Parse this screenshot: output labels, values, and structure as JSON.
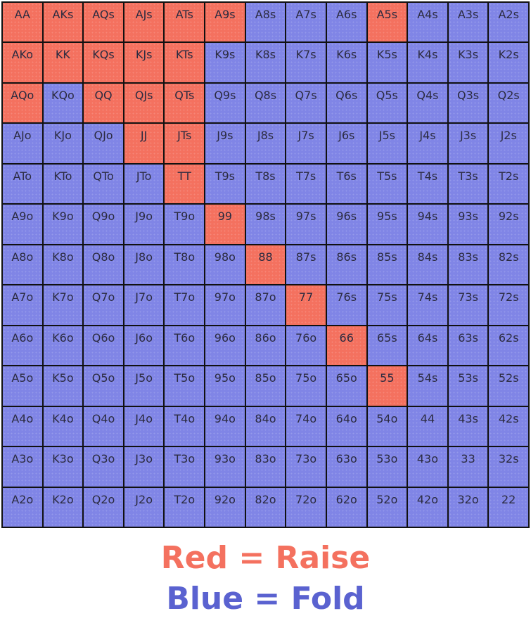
{
  "colors": {
    "raise": "#f4715f",
    "fold": "#8085e6",
    "raise_text": "#f4715f",
    "fold_text": "#5a62d0"
  },
  "grid": {
    "rows": [
      [
        "AA",
        "AKs",
        "AQs",
        "AJs",
        "ATs",
        "A9s",
        "A8s",
        "A7s",
        "A6s",
        "A5s",
        "A4s",
        "A3s",
        "A2s"
      ],
      [
        "AKo",
        "KK",
        "KQs",
        "KJs",
        "KTs",
        "K9s",
        "K8s",
        "K7s",
        "K6s",
        "K5s",
        "K4s",
        "K3s",
        "K2s"
      ],
      [
        "AQo",
        "KQo",
        "QQ",
        "QJs",
        "QTs",
        "Q9s",
        "Q8s",
        "Q7s",
        "Q6s",
        "Q5s",
        "Q4s",
        "Q3s",
        "Q2s"
      ],
      [
        "AJo",
        "KJo",
        "QJo",
        "JJ",
        "JTs",
        "J9s",
        "J8s",
        "J7s",
        "J6s",
        "J5s",
        "J4s",
        "J3s",
        "J2s"
      ],
      [
        "ATo",
        "KTo",
        "QTo",
        "JTo",
        "TT",
        "T9s",
        "T8s",
        "T7s",
        "T6s",
        "T5s",
        "T4s",
        "T3s",
        "T2s"
      ],
      [
        "A9o",
        "K9o",
        "Q9o",
        "J9o",
        "T9o",
        "99",
        "98s",
        "97s",
        "96s",
        "95s",
        "94s",
        "93s",
        "92s"
      ],
      [
        "A8o",
        "K8o",
        "Q8o",
        "J8o",
        "T8o",
        "98o",
        "88",
        "87s",
        "86s",
        "85s",
        "84s",
        "83s",
        "82s"
      ],
      [
        "A7o",
        "K7o",
        "Q7o",
        "J7o",
        "T7o",
        "97o",
        "87o",
        "77",
        "76s",
        "75s",
        "74s",
        "73s",
        "72s"
      ],
      [
        "A6o",
        "K6o",
        "Q6o",
        "J6o",
        "T6o",
        "96o",
        "86o",
        "76o",
        "66",
        "65s",
        "64s",
        "63s",
        "62s"
      ],
      [
        "A5o",
        "K5o",
        "Q5o",
        "J5o",
        "T5o",
        "95o",
        "85o",
        "75o",
        "65o",
        "55",
        "54s",
        "53s",
        "52s"
      ],
      [
        "A4o",
        "K4o",
        "Q4o",
        "J4o",
        "T4o",
        "94o",
        "84o",
        "74o",
        "64o",
        "54o",
        "44",
        "43s",
        "42s"
      ],
      [
        "A3o",
        "K3o",
        "Q3o",
        "J3o",
        "T3o",
        "93o",
        "83o",
        "73o",
        "63o",
        "53o",
        "43o",
        "33",
        "32s"
      ],
      [
        "A2o",
        "K2o",
        "Q2o",
        "J2o",
        "T2o",
        "92o",
        "82o",
        "72o",
        "62o",
        "52o",
        "42o",
        "32o",
        "22"
      ]
    ],
    "raise_hands": [
      "AA",
      "AKs",
      "AQs",
      "AJs",
      "ATs",
      "A9s",
      "A5s",
      "AKo",
      "KK",
      "KQs",
      "KJs",
      "KTs",
      "AQo",
      "QQ",
      "QJs",
      "QTs",
      "JJ",
      "JTs",
      "TT",
      "99",
      "88",
      "77",
      "66",
      "55"
    ]
  },
  "legend": {
    "raise": "Red = Raise",
    "fold": "Blue = Fold"
  }
}
